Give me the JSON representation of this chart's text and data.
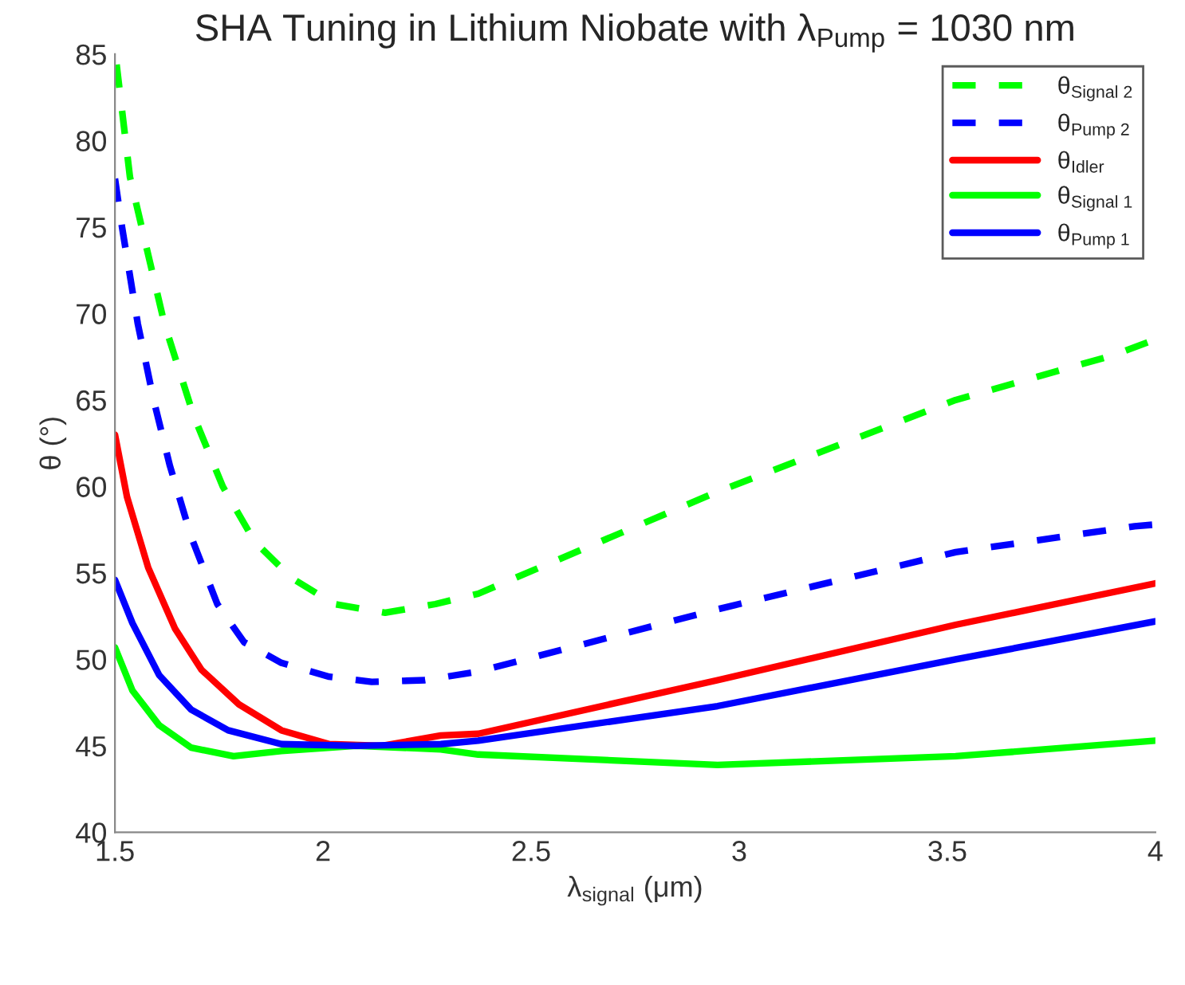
{
  "chart_data": {
    "type": "line",
    "title": "SHA Tuning in Lithium Niobate with λ$_{Pump}$ = 1030 nm",
    "xlabel": "λ$_{signal}$ (μm)",
    "ylabel": "θ (°)",
    "xlim": [
      1.5,
      4
    ],
    "ylim": [
      40,
      85
    ],
    "xticks": [
      1.5,
      2,
      2.5,
      3,
      3.5,
      4
    ],
    "yticks": [
      40,
      45,
      50,
      55,
      60,
      65,
      70,
      75,
      80,
      85
    ],
    "grid": false,
    "legend": "top right",
    "series": [
      {
        "name": "θ$_{Signal 2}$",
        "color": "#00ff00",
        "line_style": "dashed",
        "x": [
          1.504,
          1.536,
          1.619,
          1.689,
          1.759,
          1.836,
          1.925,
          2.027,
          2.149,
          2.27,
          2.373,
          2.948,
          3.52,
          3.9,
          4.0
        ],
        "values": [
          84.4,
          77.9,
          69.4,
          64.1,
          60.0,
          56.8,
          54.7,
          53.2,
          52.7,
          53.2,
          53.8,
          59.7,
          65.0,
          67.6,
          68.5
        ]
      },
      {
        "name": "θ$_{Pump 2}$",
        "color": "#0000ff",
        "line_style": "dashed",
        "x": [
          1.5,
          1.517,
          1.555,
          1.593,
          1.632,
          1.683,
          1.746,
          1.81,
          1.9,
          2.015,
          2.117,
          2.245,
          2.373,
          2.948,
          3.52,
          3.95,
          4.0
        ],
        "values": [
          77.8,
          75.0,
          69.4,
          65.0,
          61.2,
          57.1,
          53.2,
          51.0,
          49.8,
          49.0,
          48.7,
          48.8,
          49.3,
          52.9,
          56.2,
          57.7,
          57.8
        ]
      },
      {
        "name": "θ$_{Idler}$",
        "color": "#ff0000",
        "line_style": "solid",
        "x": [
          1.5,
          1.529,
          1.58,
          1.644,
          1.708,
          1.798,
          1.9,
          2.015,
          2.142,
          2.283,
          2.373,
          2.948,
          3.52,
          4.0
        ],
        "values": [
          63.0,
          59.4,
          55.3,
          51.8,
          49.4,
          47.4,
          45.9,
          45.1,
          45.0,
          45.6,
          45.7,
          48.8,
          52.0,
          54.4
        ]
      },
      {
        "name": "θ$_{Signal 1}$",
        "color": "#00ff00",
        "line_style": "solid",
        "x": [
          1.5,
          1.542,
          1.606,
          1.683,
          1.785,
          1.9,
          2.08,
          2.283,
          2.373,
          2.948,
          3.52,
          4.0
        ],
        "values": [
          50.7,
          48.2,
          46.2,
          44.9,
          44.4,
          44.7,
          45.0,
          44.8,
          44.5,
          43.9,
          44.4,
          45.3
        ]
      },
      {
        "name": "θ$_{Pump 1}$",
        "color": "#0000ff",
        "line_style": "solid",
        "x": [
          1.5,
          1.542,
          1.606,
          1.683,
          1.772,
          1.9,
          2.08,
          2.283,
          2.373,
          2.948,
          3.52,
          4.0
        ],
        "values": [
          54.6,
          52.1,
          49.1,
          47.1,
          45.9,
          45.1,
          45.0,
          45.1,
          45.3,
          47.3,
          50.0,
          52.2
        ]
      }
    ]
  }
}
